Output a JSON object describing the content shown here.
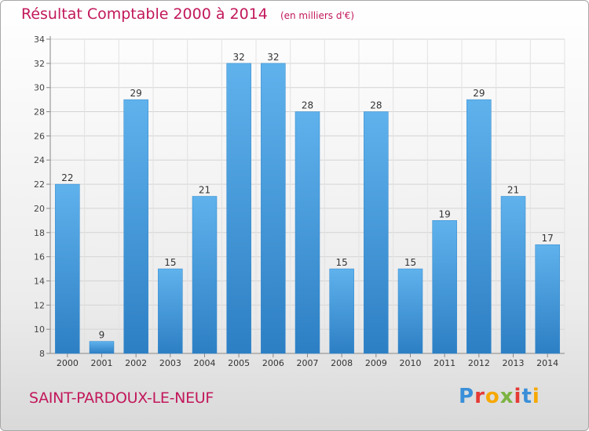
{
  "chart_data": {
    "type": "bar",
    "title": "Résultat Comptable 2000 à 2014",
    "unit_label": "(en milliers d'€)",
    "categories": [
      "2000",
      "2001",
      "2002",
      "2003",
      "2004",
      "2005",
      "2006",
      "2007",
      "2008",
      "2009",
      "2010",
      "2011",
      "2012",
      "2013",
      "2014"
    ],
    "values": [
      22,
      9,
      29,
      15,
      21,
      32,
      32,
      28,
      15,
      28,
      15,
      19,
      29,
      21,
      17
    ],
    "y_ticks": [
      8,
      10,
      12,
      14,
      16,
      18,
      20,
      22,
      24,
      26,
      28,
      30,
      32,
      34
    ],
    "ylim": [
      8,
      34
    ],
    "grid": true,
    "bar_color": "#4a9fdc"
  },
  "footer": {
    "commune": "SAINT-PARDOUX-LE-NEUF",
    "logo_letters": [
      "P",
      "r",
      "o",
      "x",
      "i",
      "t",
      "i"
    ],
    "logo_colors": [
      "#3a8fd8",
      "#e53935",
      "#f6a800",
      "#7cb342",
      "#e53935",
      "#3a8fd8",
      "#f6a800"
    ]
  }
}
